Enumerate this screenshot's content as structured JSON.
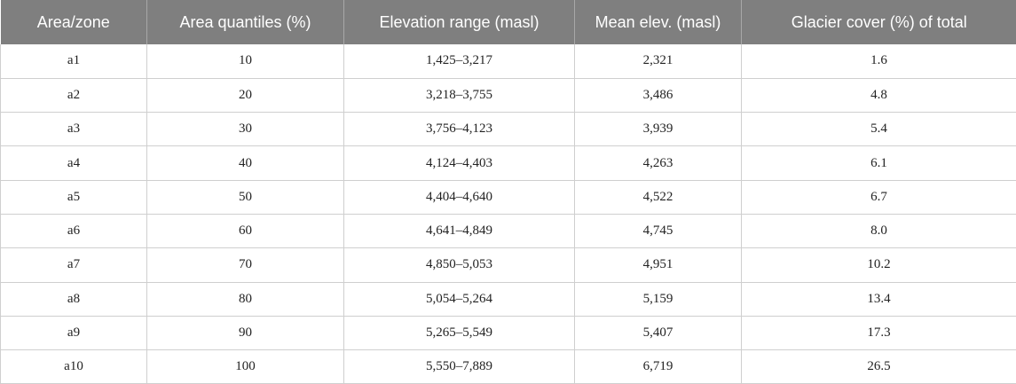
{
  "table": {
    "headers": [
      "Area/zone",
      "Area quantiles (%)",
      "Elevation range (masl)",
      "Mean elev. (masl)",
      "Glacier cover (%) of total"
    ],
    "rows": [
      [
        "a1",
        "10",
        "1,425–3,217",
        "2,321",
        "1.6"
      ],
      [
        "a2",
        "20",
        "3,218–3,755",
        "3,486",
        "4.8"
      ],
      [
        "a3",
        "30",
        "3,756–4,123",
        "3,939",
        "5.4"
      ],
      [
        "a4",
        "40",
        "4,124–4,403",
        "4,263",
        "6.1"
      ],
      [
        "a5",
        "50",
        "4,404–4,640",
        "4,522",
        "6.7"
      ],
      [
        "a6",
        "60",
        "4,641–4,849",
        "4,745",
        "8.0"
      ],
      [
        "a7",
        "70",
        "4,850–5,053",
        "4,951",
        "10.2"
      ],
      [
        "a8",
        "80",
        "5,054–5,264",
        "5,159",
        "13.4"
      ],
      [
        "a9",
        "90",
        "5,265–5,549",
        "5,407",
        "17.3"
      ],
      [
        "a10",
        "100",
        "5,550–7,889",
        "6,719",
        "26.5"
      ]
    ]
  },
  "colors": {
    "header_background": "#7f7f7f",
    "header_text": "#ffffff",
    "grid_lines": "#cfcfcf"
  }
}
